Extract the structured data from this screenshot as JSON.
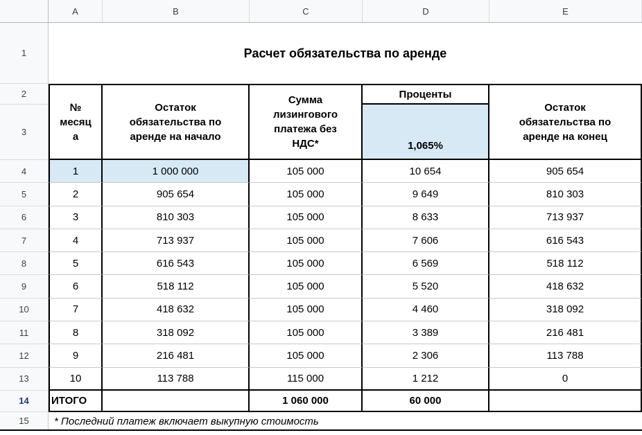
{
  "sheet": {
    "column_headers": [
      "A",
      "B",
      "C",
      "D",
      "E"
    ],
    "row_headers": [
      "1",
      "2",
      "3",
      "4",
      "5",
      "6",
      "7",
      "8",
      "9",
      "10",
      "11",
      "12",
      "13",
      "14",
      "15"
    ],
    "active_row_header": "14",
    "title": "Расчет обязательства по аренде",
    "table": {
      "header": {
        "month": "№ месяца",
        "start": "Остаток\nобязательства по\nаренде на начало",
        "payment": "Сумма\nлизингового\nплатежа без\nНДС*",
        "interest_title": "Проценты",
        "interest_rate": "1,065%",
        "end": "Остаток\nобязательства по\nаренде на конец"
      },
      "rows": [
        {
          "month": "1",
          "start": "1 000 000",
          "payment": "105 000",
          "interest": "10 654",
          "end": "905 654",
          "highlight": true
        },
        {
          "month": "2",
          "start": "905 654",
          "payment": "105 000",
          "interest": "9 649",
          "end": "810 303",
          "highlight": false
        },
        {
          "month": "3",
          "start": "810 303",
          "payment": "105 000",
          "interest": "8 633",
          "end": "713 937",
          "highlight": false
        },
        {
          "month": "4",
          "start": "713 937",
          "payment": "105 000",
          "interest": "7 606",
          "end": "616 543",
          "highlight": false
        },
        {
          "month": "5",
          "start": "616 543",
          "payment": "105 000",
          "interest": "6 569",
          "end": "518 112",
          "highlight": false
        },
        {
          "month": "6",
          "start": "518 112",
          "payment": "105 000",
          "interest": "5 520",
          "end": "418 632",
          "highlight": false
        },
        {
          "month": "7",
          "start": "418 632",
          "payment": "105 000",
          "interest": "4 460",
          "end": "318 092",
          "highlight": false
        },
        {
          "month": "8",
          "start": "318 092",
          "payment": "105 000",
          "interest": "3 389",
          "end": "216 481",
          "highlight": false
        },
        {
          "month": "9",
          "start": "216 481",
          "payment": "105 000",
          "interest": "2 306",
          "end": "113 788",
          "highlight": false
        },
        {
          "month": "10",
          "start": "113 788",
          "payment": "115 000",
          "interest": "1 212",
          "end": "0",
          "highlight": false
        }
      ],
      "total": {
        "label": "ИТОГО",
        "start": "",
        "payment": "1 060 000",
        "interest": "60 000",
        "end": ""
      }
    },
    "footnote": "* Последний платеж включает выкупную стоимость",
    "colors": {
      "highlight": "#d6e9f4",
      "header_bg": "#f8f9fa",
      "grid_line": "#c9c9c9",
      "active_row_number": "#1a3a85"
    }
  }
}
